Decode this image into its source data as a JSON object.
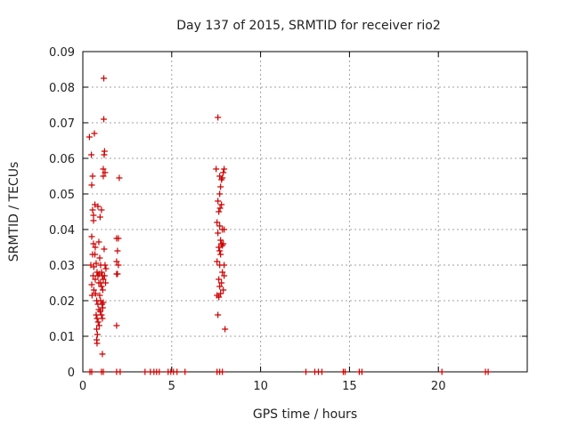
{
  "chart_data": {
    "type": "scatter",
    "title": "Day 137 of 2015, SRMTID for receiver rio2",
    "xlabel": "GPS time / hours",
    "ylabel": "SRMTID / TECUs",
    "xlim": [
      0,
      25
    ],
    "ylim": [
      0,
      0.09
    ],
    "xticks": [
      0,
      5,
      10,
      15,
      20
    ],
    "xtick_labels": [
      "0",
      "5",
      "10",
      "15",
      "20"
    ],
    "yticks": [
      0,
      0.01,
      0.02,
      0.03,
      0.04,
      0.05,
      0.06,
      0.07,
      0.08,
      0.09
    ],
    "ytick_labels": [
      "0",
      "0.01",
      "0.02",
      "0.03",
      "0.04",
      "0.05",
      "0.06",
      "0.07",
      "0.08",
      "0.09"
    ],
    "grid": true,
    "marker": "plus",
    "color": "#cc0000",
    "points": [
      [
        0.37,
        0.066
      ],
      [
        0.48,
        0.061
      ],
      [
        0.65,
        0.067
      ],
      [
        0.55,
        0.055
      ],
      [
        0.5,
        0.0525
      ],
      [
        0.6,
        0.044
      ],
      [
        0.55,
        0.0455
      ],
      [
        0.68,
        0.047
      ],
      [
        0.6,
        0.0425
      ],
      [
        0.5,
        0.038
      ],
      [
        0.6,
        0.036
      ],
      [
        0.7,
        0.035
      ],
      [
        0.55,
        0.033
      ],
      [
        0.45,
        0.03
      ],
      [
        0.62,
        0.0295
      ],
      [
        0.58,
        0.027
      ],
      [
        0.7,
        0.026
      ],
      [
        0.5,
        0.0245
      ],
      [
        0.62,
        0.023
      ],
      [
        0.52,
        0.0215
      ],
      [
        0.68,
        0.033
      ],
      [
        0.75,
        0.0305
      ],
      [
        0.8,
        0.028
      ],
      [
        0.85,
        0.027
      ],
      [
        0.9,
        0.025
      ],
      [
        0.72,
        0.022
      ],
      [
        0.78,
        0.02
      ],
      [
        0.85,
        0.019
      ],
      [
        0.9,
        0.0175
      ],
      [
        0.75,
        0.016
      ],
      [
        0.8,
        0.015
      ],
      [
        0.86,
        0.014
      ],
      [
        0.92,
        0.013
      ],
      [
        0.78,
        0.012
      ],
      [
        0.82,
        0.0105
      ],
      [
        0.78,
        0.009
      ],
      [
        0.8,
        0.008
      ],
      [
        0.95,
        0.032
      ],
      [
        1.0,
        0.03
      ],
      [
        1.05,
        0.028
      ],
      [
        1.1,
        0.027
      ],
      [
        1.15,
        0.026
      ],
      [
        1.0,
        0.025
      ],
      [
        1.05,
        0.024
      ],
      [
        1.12,
        0.023
      ],
      [
        0.95,
        0.0215
      ],
      [
        1.0,
        0.02
      ],
      [
        1.08,
        0.019
      ],
      [
        1.12,
        0.018
      ],
      [
        0.98,
        0.017
      ],
      [
        1.05,
        0.016
      ],
      [
        1.1,
        0.015
      ],
      [
        0.92,
        0.0275
      ],
      [
        0.97,
        0.0435
      ],
      [
        1.18,
        0.0825
      ],
      [
        1.18,
        0.071
      ],
      [
        1.22,
        0.062
      ],
      [
        1.2,
        0.061
      ],
      [
        1.15,
        0.057
      ],
      [
        1.25,
        0.056
      ],
      [
        1.15,
        0.055
      ],
      [
        1.1,
        0.005
      ],
      [
        1.2,
        0.0345
      ],
      [
        1.25,
        0.03
      ],
      [
        1.3,
        0.029
      ],
      [
        1.22,
        0.027
      ],
      [
        1.28,
        0.025
      ],
      [
        1.15,
        0.0195
      ],
      [
        1.05,
        0.0455
      ],
      [
        0.9,
        0.0365
      ],
      [
        0.85,
        0.0465
      ],
      [
        1.9,
        0.0375
      ],
      [
        2.0,
        0.0375
      ],
      [
        1.95,
        0.034
      ],
      [
        1.9,
        0.031
      ],
      [
        2.0,
        0.03
      ],
      [
        1.95,
        0.0275
      ],
      [
        1.9,
        0.0275
      ],
      [
        2.05,
        0.0545
      ],
      [
        1.9,
        0.013
      ],
      [
        7.6,
        0.0715
      ],
      [
        7.5,
        0.057
      ],
      [
        7.7,
        0.055
      ],
      [
        7.8,
        0.054
      ],
      [
        7.75,
        0.052
      ],
      [
        7.7,
        0.05
      ],
      [
        7.6,
        0.048
      ],
      [
        7.8,
        0.047
      ],
      [
        7.72,
        0.046
      ],
      [
        7.65,
        0.045
      ],
      [
        7.55,
        0.042
      ],
      [
        7.7,
        0.041
      ],
      [
        7.85,
        0.04
      ],
      [
        7.6,
        0.039
      ],
      [
        7.75,
        0.037
      ],
      [
        7.8,
        0.036
      ],
      [
        7.65,
        0.035
      ],
      [
        7.7,
        0.034
      ],
      [
        7.75,
        0.033
      ],
      [
        7.55,
        0.031
      ],
      [
        7.7,
        0.03
      ],
      [
        7.85,
        0.028
      ],
      [
        7.95,
        0.027
      ],
      [
        7.65,
        0.026
      ],
      [
        7.8,
        0.025
      ],
      [
        7.7,
        0.024
      ],
      [
        7.9,
        0.023
      ],
      [
        7.75,
        0.022
      ],
      [
        7.55,
        0.0215
      ],
      [
        7.65,
        0.021
      ],
      [
        7.6,
        0.016
      ],
      [
        8.0,
        0.012
      ],
      [
        7.95,
        0.057
      ],
      [
        7.9,
        0.056
      ],
      [
        7.85,
        0.0545
      ],
      [
        7.95,
        0.04
      ],
      [
        7.9,
        0.036
      ],
      [
        7.85,
        0.0355
      ],
      [
        7.95,
        0.03
      ],
      [
        0.4,
        0
      ],
      [
        0.5,
        0
      ],
      [
        1.05,
        0
      ],
      [
        1.15,
        0
      ],
      [
        1.9,
        0
      ],
      [
        2.1,
        0
      ],
      [
        3.5,
        0
      ],
      [
        3.8,
        0
      ],
      [
        4.0,
        0
      ],
      [
        4.15,
        0
      ],
      [
        4.3,
        0
      ],
      [
        4.8,
        0
      ],
      [
        4.95,
        0
      ],
      [
        5.1,
        0
      ],
      [
        5.3,
        0
      ],
      [
        5.75,
        0
      ],
      [
        7.55,
        0
      ],
      [
        7.7,
        0
      ],
      [
        7.85,
        0
      ],
      [
        12.55,
        0
      ],
      [
        13.05,
        0
      ],
      [
        13.25,
        0
      ],
      [
        13.45,
        0
      ],
      [
        14.65,
        0
      ],
      [
        14.75,
        0
      ],
      [
        15.55,
        0
      ],
      [
        15.7,
        0
      ],
      [
        20.2,
        0
      ],
      [
        22.65,
        0
      ],
      [
        22.8,
        0
      ]
    ]
  }
}
